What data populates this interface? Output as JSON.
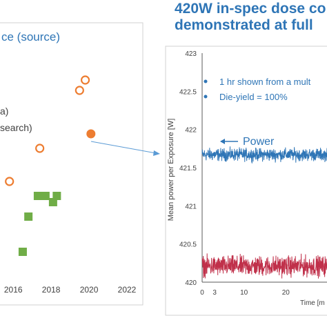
{
  "headline": {
    "line1": "420W in-spec dose co",
    "line2": "demonstrated at full"
  },
  "chart_data": [
    {
      "type": "scatter",
      "title": "ce (source)",
      "legend_fragments": [
        "a)",
        "search)"
      ],
      "x_ticks": [
        "2016",
        "2018",
        "2020",
        "2022"
      ],
      "xlim": [
        2014.5,
        2022
      ],
      "series": [
        {
          "marker": "open-circle",
          "color": "#ed7d31",
          "points": [
            {
              "x": 2015.8,
              "y": 0.39
            },
            {
              "x": 2017.4,
              "y": 0.55
            },
            {
              "x": 2019.5,
              "y": 0.83
            },
            {
              "x": 2019.8,
              "y": 0.88
            }
          ]
        },
        {
          "marker": "filled-circle",
          "color": "#ed7d31",
          "points": [
            {
              "x": 2020.1,
              "y": 0.62
            }
          ]
        },
        {
          "marker": "filled-square",
          "color": "#70ad47",
          "points": [
            {
              "x": 2016.5,
              "y": 0.05
            },
            {
              "x": 2016.8,
              "y": 0.22
            },
            {
              "x": 2017.3,
              "y": 0.32
            },
            {
              "x": 2017.7,
              "y": 0.32
            },
            {
              "x": 2018.1,
              "y": 0.29
            },
            {
              "x": 2018.3,
              "y": 0.32
            }
          ]
        }
      ]
    },
    {
      "type": "line",
      "ylabel": "Mean power per Exposure [W]",
      "xlabel": "Time [m",
      "ylim": [
        420,
        423
      ],
      "y_ticks": [
        "423",
        "422.5",
        "422",
        "421.5",
        "421",
        "420.5",
        "420"
      ],
      "x_ticks": [
        "0",
        "10",
        "20",
        "3"
      ],
      "xlim": [
        0,
        32
      ],
      "annotations": [
        "1 hr shown from a mult",
        "Die-yield = 100%"
      ],
      "series": [
        {
          "label": "Power",
          "color": "#2e75b6",
          "mean": 421.67,
          "noise": 0.05
        },
        {
          "color": "#c0304a",
          "mean": 420.21,
          "noise": 0.08
        }
      ]
    }
  ]
}
